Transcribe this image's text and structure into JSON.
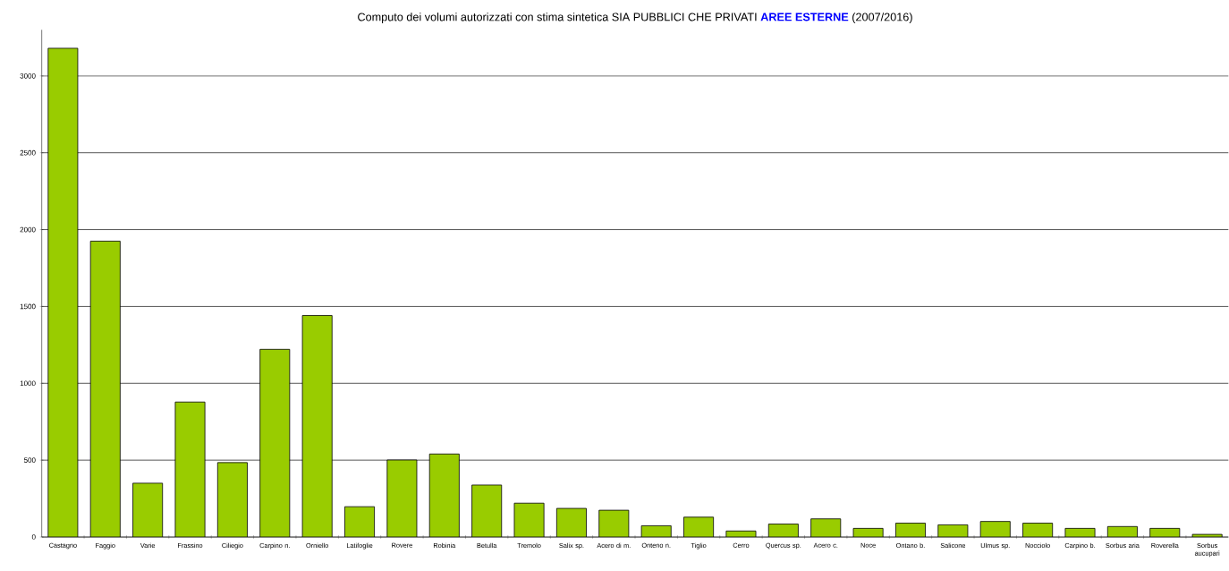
{
  "chart_data": {
    "type": "bar",
    "title": "Computo dei volumi autorizzati con stima sintetica SIA PUBBLICI CHE PRIVATI **AREE ESTERNE** (2007/2016)",
    "categories": [
      "Castagno",
      "Faggio",
      "Varie",
      "Frassino",
      "Ciliegio",
      "Carpino n.",
      "Orniello",
      "Latifoglie",
      "Rovere",
      "Robinia",
      "Betulla",
      "Tremolo",
      "Salix sp.",
      "Acero di m.",
      "Onteno n.",
      "Tiglio",
      "Cerro",
      "Quercus sp.",
      "Acero c.",
      "Noce",
      "Ontano b.",
      "Salicone",
      "Ulmus sp.",
      "Nocciolo",
      "Carpino b.",
      "Sorbus aria",
      "Roverella",
      "Sorbus aucupari"
    ],
    "values": [
      3180,
      1925,
      350,
      878,
      484,
      1221,
      1441,
      197,
      501,
      540,
      338,
      220,
      186,
      174,
      73,
      129,
      39,
      84,
      118,
      56,
      90,
      79,
      101,
      90,
      56,
      68,
      56,
      17
    ],
    "color": "#99cc00",
    "ylim": [
      0,
      3300
    ],
    "yticks": [
      0,
      500,
      1000,
      1500,
      2000,
      2500,
      3000
    ],
    "grid": "y"
  }
}
